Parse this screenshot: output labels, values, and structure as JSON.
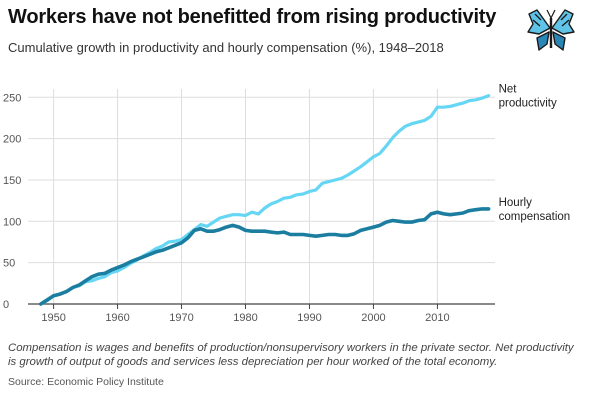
{
  "header": {
    "title": "Workers have not benefitted from rising productivity",
    "subtitle": "Cumulative growth in productivity and hourly compensation (%), 1948–2018"
  },
  "footer": {
    "note": "Compensation is wages and benefits of production/nonsupervisory workers in the private sector. Net productivity is growth of output of goods and services less depreciation per hour worked of the total economy.",
    "source": "Source: Economic Policy Institute"
  },
  "logo": {
    "icon": "butterfly-icon"
  },
  "chart_data": {
    "type": "line",
    "xlim": [
      1946,
      2019
    ],
    "ylim": [
      0,
      260
    ],
    "x_ticks": [
      1950,
      1960,
      1970,
      1980,
      1990,
      2000,
      2010
    ],
    "y_ticks": [
      0,
      50,
      100,
      150,
      200,
      250
    ],
    "grid": true,
    "colors": {
      "productivity": "#66d6f5",
      "compensation": "#1b7ea0",
      "grid": "#dddddd",
      "baseline": "#444444"
    },
    "series_labels": {
      "productivity": [
        "Net",
        "productivity"
      ],
      "compensation": [
        "Hourly",
        "compensation"
      ]
    },
    "series": [
      {
        "key": "productivity",
        "values": [
          [
            1948,
            0
          ],
          [
            1949,
            4
          ],
          [
            1950,
            10
          ],
          [
            1951,
            12
          ],
          [
            1952,
            15
          ],
          [
            1953,
            20
          ],
          [
            1954,
            22
          ],
          [
            1955,
            27
          ],
          [
            1956,
            28
          ],
          [
            1957,
            31
          ],
          [
            1958,
            33
          ],
          [
            1959,
            38
          ],
          [
            1960,
            40
          ],
          [
            1961,
            44
          ],
          [
            1962,
            49
          ],
          [
            1963,
            53
          ],
          [
            1964,
            58
          ],
          [
            1965,
            62
          ],
          [
            1966,
            67
          ],
          [
            1967,
            70
          ],
          [
            1968,
            75
          ],
          [
            1969,
            76
          ],
          [
            1970,
            78
          ],
          [
            1971,
            84
          ],
          [
            1972,
            90
          ],
          [
            1973,
            96
          ],
          [
            1974,
            94
          ],
          [
            1975,
            99
          ],
          [
            1976,
            104
          ],
          [
            1977,
            106
          ],
          [
            1978,
            108
          ],
          [
            1979,
            108
          ],
          [
            1980,
            107
          ],
          [
            1981,
            111
          ],
          [
            1982,
            109
          ],
          [
            1983,
            116
          ],
          [
            1984,
            121
          ],
          [
            1985,
            124
          ],
          [
            1986,
            128
          ],
          [
            1987,
            129
          ],
          [
            1988,
            132
          ],
          [
            1989,
            133
          ],
          [
            1990,
            136
          ],
          [
            1991,
            138
          ],
          [
            1992,
            146
          ],
          [
            1993,
            148
          ],
          [
            1994,
            150
          ],
          [
            1995,
            152
          ],
          [
            1996,
            156
          ],
          [
            1997,
            161
          ],
          [
            1998,
            166
          ],
          [
            1999,
            172
          ],
          [
            2000,
            178
          ],
          [
            2001,
            182
          ],
          [
            2002,
            191
          ],
          [
            2003,
            201
          ],
          [
            2004,
            209
          ],
          [
            2005,
            215
          ],
          [
            2006,
            218
          ],
          [
            2007,
            220
          ],
          [
            2008,
            222
          ],
          [
            2009,
            227
          ],
          [
            2010,
            238
          ],
          [
            2011,
            238
          ],
          [
            2012,
            239
          ],
          [
            2013,
            241
          ],
          [
            2014,
            243
          ],
          [
            2015,
            246
          ],
          [
            2016,
            247
          ],
          [
            2017,
            249
          ],
          [
            2018,
            252
          ]
        ]
      },
      {
        "key": "compensation",
        "values": [
          [
            1948,
            0
          ],
          [
            1949,
            5
          ],
          [
            1950,
            10
          ],
          [
            1951,
            12
          ],
          [
            1952,
            15
          ],
          [
            1953,
            20
          ],
          [
            1954,
            23
          ],
          [
            1955,
            28
          ],
          [
            1956,
            33
          ],
          [
            1957,
            36
          ],
          [
            1958,
            37
          ],
          [
            1959,
            41
          ],
          [
            1960,
            44
          ],
          [
            1961,
            47
          ],
          [
            1962,
            51
          ],
          [
            1963,
            54
          ],
          [
            1964,
            57
          ],
          [
            1965,
            60
          ],
          [
            1966,
            63
          ],
          [
            1967,
            65
          ],
          [
            1968,
            68
          ],
          [
            1969,
            71
          ],
          [
            1970,
            74
          ],
          [
            1971,
            80
          ],
          [
            1972,
            89
          ],
          [
            1973,
            91
          ],
          [
            1974,
            88
          ],
          [
            1975,
            88
          ],
          [
            1976,
            90
          ],
          [
            1977,
            93
          ],
          [
            1978,
            95
          ],
          [
            1979,
            93
          ],
          [
            1980,
            89
          ],
          [
            1981,
            88
          ],
          [
            1982,
            88
          ],
          [
            1983,
            88
          ],
          [
            1984,
            87
          ],
          [
            1985,
            86
          ],
          [
            1986,
            87
          ],
          [
            1987,
            84
          ],
          [
            1988,
            84
          ],
          [
            1989,
            84
          ],
          [
            1990,
            83
          ],
          [
            1991,
            82
          ],
          [
            1992,
            83
          ],
          [
            1993,
            84
          ],
          [
            1994,
            84
          ],
          [
            1995,
            83
          ],
          [
            1996,
            83
          ],
          [
            1997,
            85
          ],
          [
            1998,
            89
          ],
          [
            1999,
            91
          ],
          [
            2000,
            93
          ],
          [
            2001,
            95
          ],
          [
            2002,
            99
          ],
          [
            2003,
            101
          ],
          [
            2004,
            100
          ],
          [
            2005,
            99
          ],
          [
            2006,
            99
          ],
          [
            2007,
            101
          ],
          [
            2008,
            102
          ],
          [
            2009,
            109
          ],
          [
            2010,
            111
          ],
          [
            2011,
            109
          ],
          [
            2012,
            108
          ],
          [
            2013,
            109
          ],
          [
            2014,
            110
          ],
          [
            2015,
            113
          ],
          [
            2016,
            114
          ],
          [
            2017,
            115
          ],
          [
            2018,
            115
          ]
        ]
      }
    ]
  }
}
